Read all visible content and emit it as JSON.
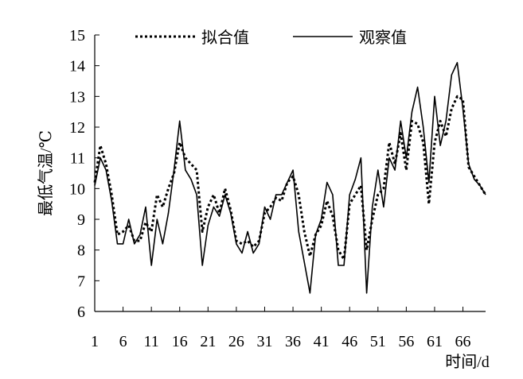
{
  "chart_data": {
    "type": "line",
    "title": "",
    "xlabel": "时间/d",
    "ylabel": "最低气温/℃",
    "xlim": [
      1,
      70
    ],
    "ylim": [
      6,
      15
    ],
    "x_ticks": [
      1,
      6,
      11,
      16,
      21,
      26,
      31,
      36,
      41,
      46,
      51,
      56,
      61,
      66
    ],
    "y_ticks": [
      6,
      7,
      8,
      9,
      10,
      11,
      12,
      13,
      14,
      15
    ],
    "grid": false,
    "legend_position": "top",
    "x": [
      1,
      2,
      3,
      4,
      5,
      6,
      7,
      8,
      9,
      10,
      11,
      12,
      13,
      14,
      15,
      16,
      17,
      18,
      19,
      20,
      21,
      22,
      23,
      24,
      25,
      26,
      27,
      28,
      29,
      30,
      31,
      32,
      33,
      34,
      35,
      36,
      37,
      38,
      39,
      40,
      41,
      42,
      43,
      44,
      45,
      46,
      47,
      48,
      49,
      50,
      51,
      52,
      53,
      54,
      55,
      56,
      57,
      58,
      59,
      60,
      61,
      62,
      63,
      64,
      65,
      66,
      67,
      68,
      69,
      70
    ],
    "series": [
      {
        "name": "拟合值",
        "style": "dotted",
        "color": "#000000",
        "values": [
          10.2,
          11.4,
          10.8,
          9.8,
          8.5,
          8.6,
          8.8,
          8.3,
          8.3,
          8.9,
          8.6,
          9.8,
          9.4,
          10.0,
          10.5,
          11.5,
          11.0,
          10.8,
          10.6,
          8.6,
          9.4,
          9.8,
          9.2,
          10.0,
          9.3,
          8.3,
          8.2,
          8.3,
          8.1,
          8.3,
          9.2,
          9.4,
          9.7,
          9.6,
          10.2,
          10.4,
          9.8,
          8.6,
          7.8,
          8.5,
          8.8,
          9.6,
          9.1,
          8.0,
          7.7,
          9.5,
          9.8,
          10.1,
          8.0,
          9.0,
          9.8,
          10.0,
          11.5,
          10.8,
          11.8,
          10.6,
          12.2,
          12.1,
          11.5,
          9.5,
          11.5,
          12.2,
          11.7,
          12.6,
          13.0,
          12.9,
          10.7,
          10.4,
          10.1,
          9.8
        ]
      },
      {
        "name": "观察值",
        "style": "solid",
        "color": "#000000",
        "values": [
          10.1,
          11.0,
          10.6,
          9.6,
          8.2,
          8.2,
          9.0,
          8.2,
          8.5,
          9.4,
          7.5,
          9.0,
          8.2,
          9.2,
          10.6,
          12.2,
          10.6,
          10.3,
          9.8,
          7.5,
          8.8,
          9.4,
          9.1,
          9.8,
          9.2,
          8.2,
          7.9,
          8.6,
          7.9,
          8.2,
          9.4,
          9.0,
          9.8,
          9.8,
          10.2,
          10.6,
          8.6,
          7.6,
          6.6,
          8.5,
          9.0,
          10.2,
          9.8,
          7.5,
          7.5,
          9.8,
          10.3,
          11.0,
          6.6,
          9.4,
          10.6,
          9.4,
          11.0,
          10.6,
          12.2,
          11.0,
          12.5,
          13.3,
          12.0,
          10.2,
          13.0,
          11.4,
          12.2,
          13.7,
          14.1,
          12.6,
          10.8,
          10.3,
          10.1,
          9.8
        ]
      }
    ]
  }
}
